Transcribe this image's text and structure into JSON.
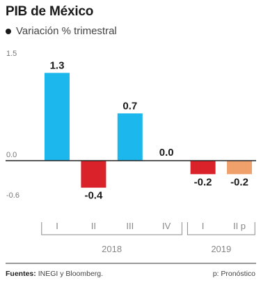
{
  "title": "PIB de México",
  "subtitle": "Variación % trimestral",
  "footer": {
    "source_label": "Fuentes:",
    "source_text": "INEGI y Bloomberg.",
    "note": "p: Pronóstico"
  },
  "colors": {
    "positive": "#1cb7ec",
    "negative": "#d9222a",
    "forecast": "#f0a06a",
    "axis": "#222222",
    "bracket": "#888888"
  },
  "chart_data": {
    "type": "bar",
    "title": "PIB de México",
    "subtitle": "Variación % trimestral",
    "ylim": [
      -0.6,
      1.5
    ],
    "yticks": [
      {
        "value": 1.5,
        "label": "1.5"
      },
      {
        "value": 0.0,
        "label": "0.0"
      },
      {
        "value": -0.6,
        "label": "-0.6"
      }
    ],
    "categories": [
      "I",
      "II",
      "III",
      "IV",
      "I",
      "II p"
    ],
    "values": [
      1.3,
      -0.4,
      0.7,
      0.0,
      -0.2,
      -0.2
    ],
    "value_labels": [
      "1.3",
      "-0.4",
      "0.7",
      "0.0",
      "-0.2",
      "-0.2"
    ],
    "forecast": [
      false,
      false,
      false,
      false,
      false,
      true
    ],
    "groups": [
      {
        "label": "2018",
        "start": 0,
        "end": 3
      },
      {
        "label": "2019",
        "start": 4,
        "end": 5
      }
    ],
    "grid": false
  }
}
